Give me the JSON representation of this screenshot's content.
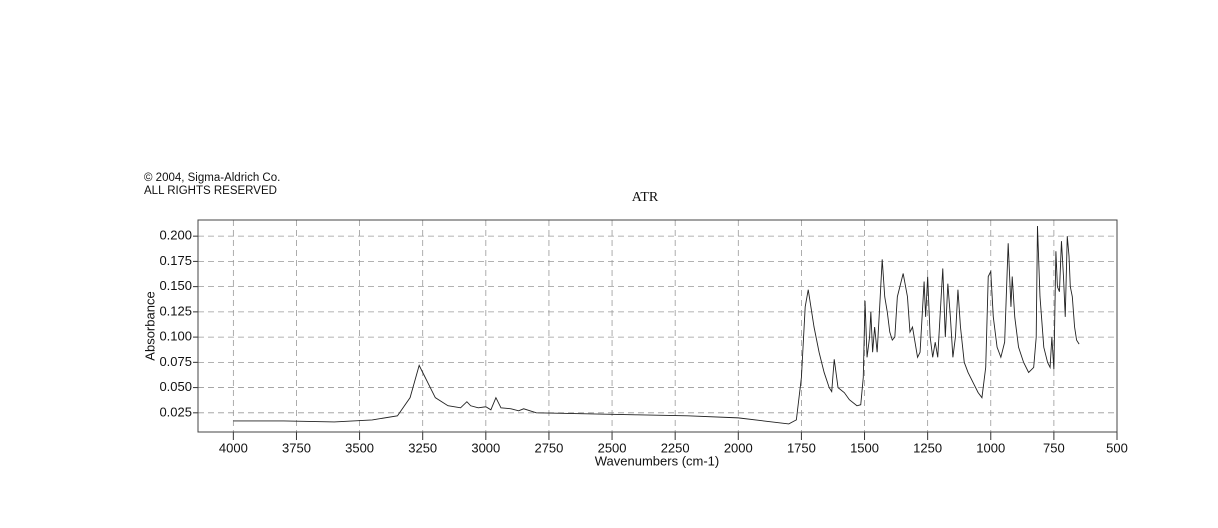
{
  "chart_data": {
    "type": "line",
    "copyright": "© 2004, Sigma-Aldrich Co.",
    "rights": "ALL RIGHTS RESERVED",
    "title": "ATR",
    "xlabel": "Wavenumbers (cm-1)",
    "ylabel": "Absorbance",
    "color": "#222222",
    "grid": true,
    "xlim": [
      4140,
      500
    ],
    "ylim": [
      0.006,
      0.216
    ],
    "xticks": [
      4000,
      3750,
      3500,
      3250,
      3000,
      2750,
      2500,
      2250,
      2000,
      1750,
      1500,
      1250,
      1000,
      750,
      500
    ],
    "yticks": [
      0.025,
      {
        "value": 0.05,
        "label": "0.050"
      },
      0.075,
      {
        "value": 0.1,
        "label": "0.100"
      },
      0.125,
      {
        "value": 0.15,
        "label": "0.150"
      },
      0.175,
      {
        "value": 0.2,
        "label": "0.200"
      }
    ],
    "x": [
      4000,
      3800,
      3600,
      3450,
      3350,
      3300,
      3264,
      3240,
      3200,
      3150,
      3100,
      3075,
      3060,
      3030,
      3000,
      2980,
      2960,
      2940,
      2900,
      2870,
      2850,
      2800,
      2600,
      2400,
      2200,
      2000,
      1900,
      1800,
      1770,
      1750,
      1735,
      1723,
      1700,
      1680,
      1660,
      1640,
      1630,
      1620,
      1605,
      1580,
      1560,
      1530,
      1515,
      1505,
      1498,
      1490,
      1480,
      1475,
      1468,
      1460,
      1450,
      1440,
      1430,
      1420,
      1410,
      1400,
      1390,
      1380,
      1370,
      1347,
      1330,
      1320,
      1310,
      1300,
      1290,
      1280,
      1264,
      1258,
      1250,
      1240,
      1230,
      1220,
      1210,
      1201,
      1190,
      1180,
      1170,
      1160,
      1150,
      1140,
      1130,
      1120,
      1105,
      1090,
      1070,
      1050,
      1035,
      1020,
      1010,
      1000,
      990,
      975,
      960,
      945,
      931,
      920,
      915,
      905,
      890,
      870,
      850,
      830,
      820,
      815,
      805,
      790,
      775,
      765,
      758,
      750,
      742,
      736,
      728,
      720,
      712,
      705,
      697,
      690,
      685,
      677,
      668,
      660,
      650
    ],
    "values": [
      0.017,
      0.017,
      0.016,
      0.018,
      0.022,
      0.04,
      0.072,
      0.06,
      0.04,
      0.032,
      0.03,
      0.036,
      0.032,
      0.03,
      0.031,
      0.028,
      0.04,
      0.03,
      0.029,
      0.027,
      0.029,
      0.025,
      0.024,
      0.023,
      0.022,
      0.02,
      0.017,
      0.014,
      0.018,
      0.06,
      0.13,
      0.147,
      0.11,
      0.085,
      0.065,
      0.05,
      0.046,
      0.078,
      0.05,
      0.045,
      0.038,
      0.032,
      0.033,
      0.06,
      0.136,
      0.08,
      0.1,
      0.125,
      0.085,
      0.11,
      0.085,
      0.13,
      0.177,
      0.14,
      0.125,
      0.105,
      0.097,
      0.1,
      0.14,
      0.163,
      0.14,
      0.105,
      0.11,
      0.095,
      0.08,
      0.085,
      0.155,
      0.12,
      0.16,
      0.1,
      0.08,
      0.095,
      0.08,
      0.12,
      0.168,
      0.1,
      0.153,
      0.12,
      0.08,
      0.1,
      0.147,
      0.11,
      0.075,
      0.065,
      0.055,
      0.045,
      0.04,
      0.07,
      0.16,
      0.165,
      0.12,
      0.09,
      0.08,
      0.095,
      0.193,
      0.13,
      0.16,
      0.12,
      0.09,
      0.075,
      0.065,
      0.07,
      0.1,
      0.21,
      0.14,
      0.09,
      0.075,
      0.07,
      0.1,
      0.068,
      0.185,
      0.15,
      0.145,
      0.195,
      0.16,
      0.12,
      0.2,
      0.18,
      0.15,
      0.14,
      0.11,
      0.097,
      0.093
    ]
  }
}
